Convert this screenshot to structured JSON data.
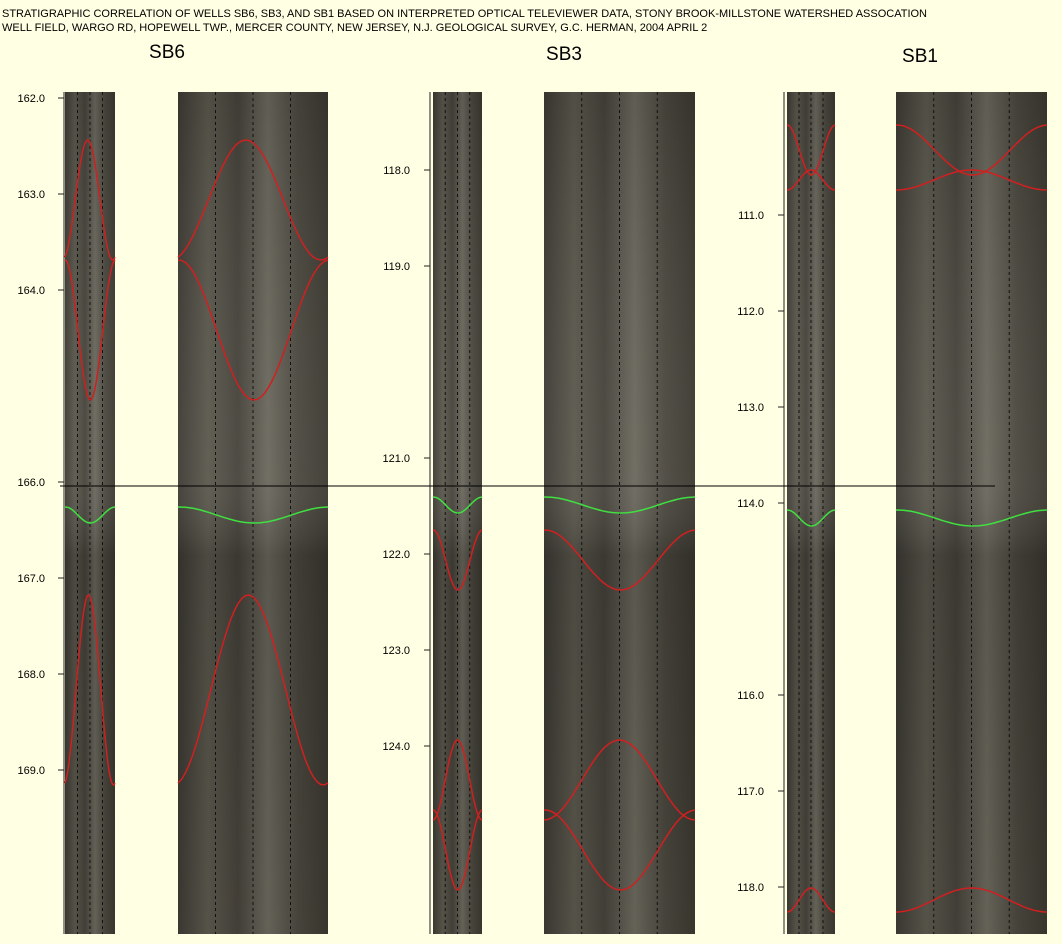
{
  "header": {
    "title_lines": [
      "STRATIGRAPHIC CORRELATION OF WELLS SB6, SB3, AND SB1 BASED ON INTERPRETED OPTICAL TELEVIEWER DATA, STONY BROOK-MILLSTONE WATERSHED ASSOCATION",
      "WELL FIELD, WARGO RD, HOPEWELL TWP., MERCER COUNTY, NEW JERSEY, N.J. GEOLOGICAL SURVEY, G.C. HERMAN, 2004 APRIL 2"
    ]
  },
  "wells": [
    {
      "name": "SB6",
      "depths": [
        "162.0",
        "163.0",
        "164.0",
        "166.0",
        "167.0",
        "168.0",
        "169.0"
      ]
    },
    {
      "name": "SB3",
      "depths": [
        "118.0",
        "119.0",
        "121.0",
        "122.0",
        "123.0",
        "124.0"
      ]
    },
    {
      "name": "SB1",
      "depths": [
        "111.0",
        "112.0",
        "113.0",
        "114.0",
        "116.0",
        "117.0",
        "118.0"
      ]
    }
  ]
}
